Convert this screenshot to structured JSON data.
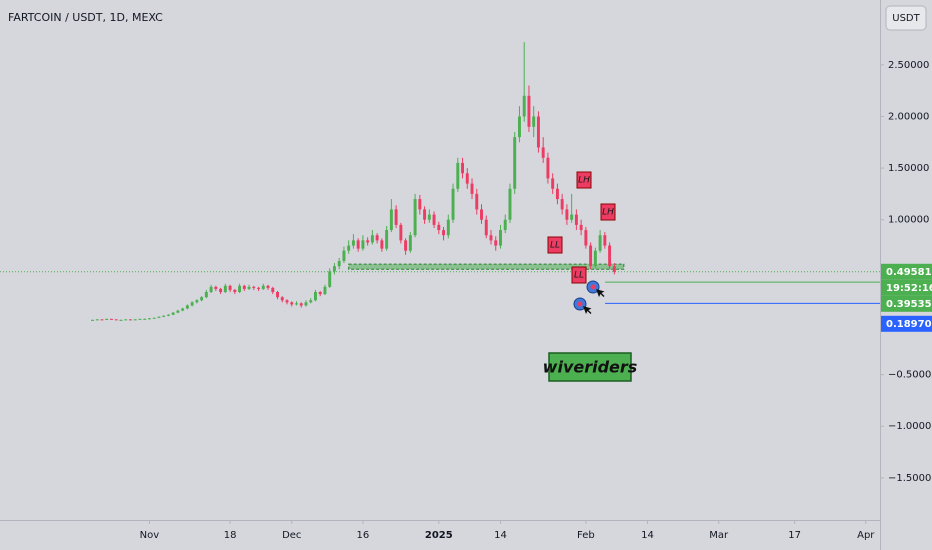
{
  "header": {
    "title": "FARTCOIN / USDT, 1D, MEXC",
    "currency_button": "USDT"
  },
  "chart_data": {
    "type": "candlestick",
    "up_color": "#4caf50",
    "down_color": "#ec3c64",
    "ylim": [
      -1.908,
      3.128
    ],
    "yticks": [
      {
        "value": 2.5,
        "label": "2.50000"
      },
      {
        "value": 2,
        "label": "2.00000"
      },
      {
        "value": 1.5,
        "label": "1.50000"
      },
      {
        "value": 1,
        "label": "1.00000"
      },
      {
        "value": -0.5,
        "label": "−0.50000"
      },
      {
        "value": -1,
        "label": "−1.00000"
      },
      {
        "value": -1.5,
        "label": "−1.50000"
      }
    ],
    "xlim": [
      -19.5,
      166
    ],
    "xticks": [
      {
        "value": 12,
        "label": "Nov"
      },
      {
        "value": 29,
        "label": "18"
      },
      {
        "value": 42,
        "label": "Dec"
      },
      {
        "value": 57,
        "label": "16"
      },
      {
        "value": 73,
        "label": "2025"
      },
      {
        "value": 86,
        "label": "14"
      },
      {
        "value": 104,
        "label": "Feb"
      },
      {
        "value": 117,
        "label": "14"
      },
      {
        "value": 132,
        "label": "Mar"
      },
      {
        "value": 148,
        "label": "17"
      },
      {
        "value": 163,
        "label": "Apr"
      }
    ],
    "candles": [
      [
        0.03,
        0.033,
        0.028,
        0.03
      ],
      [
        0.03,
        0.037,
        0.029,
        0.035
      ],
      [
        0.035,
        0.036,
        0.028,
        0.03
      ],
      [
        0.03,
        0.042,
        0.029,
        0.04
      ],
      [
        0.04,
        0.041,
        0.033,
        0.035
      ],
      [
        0.035,
        0.036,
        0.028,
        0.03
      ],
      [
        0.03,
        0.033,
        0.028,
        0.03
      ],
      [
        0.03,
        0.037,
        0.029,
        0.035
      ],
      [
        0.035,
        0.036,
        0.028,
        0.03
      ],
      [
        0.03,
        0.037,
        0.029,
        0.035
      ],
      [
        0.035,
        0.042,
        0.033,
        0.04
      ],
      [
        0.04,
        0.043,
        0.037,
        0.04
      ],
      [
        0.04,
        0.048,
        0.038,
        0.045
      ],
      [
        0.045,
        0.053,
        0.043,
        0.05
      ],
      [
        0.05,
        0.064,
        0.048,
        0.06
      ],
      [
        0.06,
        0.074,
        0.057,
        0.07
      ],
      [
        0.07,
        0.085,
        0.066,
        0.08
      ],
      [
        0.08,
        0.106,
        0.076,
        0.1
      ],
      [
        0.1,
        0.127,
        0.095,
        0.12
      ],
      [
        0.12,
        0.148,
        0.114,
        0.14
      ],
      [
        0.14,
        0.18,
        0.133,
        0.17
      ],
      [
        0.17,
        0.21,
        0.16,
        0.2
      ],
      [
        0.2,
        0.23,
        0.19,
        0.22
      ],
      [
        0.22,
        0.26,
        0.21,
        0.25
      ],
      [
        0.25,
        0.32,
        0.24,
        0.3
      ],
      [
        0.3,
        0.37,
        0.29,
        0.35
      ],
      [
        0.35,
        0.36,
        0.31,
        0.33
      ],
      [
        0.33,
        0.34,
        0.28,
        0.3
      ],
      [
        0.3,
        0.38,
        0.29,
        0.36
      ],
      [
        0.36,
        0.37,
        0.3,
        0.32
      ],
      [
        0.32,
        0.33,
        0.28,
        0.3
      ],
      [
        0.3,
        0.38,
        0.29,
        0.36
      ],
      [
        0.36,
        0.37,
        0.31,
        0.33
      ],
      [
        0.33,
        0.37,
        0.32,
        0.35
      ],
      [
        0.35,
        0.36,
        0.32,
        0.34
      ],
      [
        0.34,
        0.35,
        0.31,
        0.33
      ],
      [
        0.33,
        0.38,
        0.32,
        0.36
      ],
      [
        0.36,
        0.37,
        0.32,
        0.34
      ],
      [
        0.34,
        0.35,
        0.28,
        0.3
      ],
      [
        0.3,
        0.31,
        0.23,
        0.25
      ],
      [
        0.25,
        0.26,
        0.2,
        0.22
      ],
      [
        0.22,
        0.23,
        0.18,
        0.2
      ],
      [
        0.2,
        0.21,
        0.16,
        0.18
      ],
      [
        0.18,
        0.21,
        0.17,
        0.19
      ],
      [
        0.19,
        0.2,
        0.15,
        0.17
      ],
      [
        0.17,
        0.22,
        0.16,
        0.2
      ],
      [
        0.2,
        0.24,
        0.19,
        0.22
      ],
      [
        0.22,
        0.32,
        0.21,
        0.3
      ],
      [
        0.3,
        0.31,
        0.26,
        0.28
      ],
      [
        0.28,
        0.37,
        0.27,
        0.35
      ],
      [
        0.35,
        0.53,
        0.34,
        0.5
      ],
      [
        0.5,
        0.58,
        0.47,
        0.55
      ],
      [
        0.55,
        0.63,
        0.52,
        0.6
      ],
      [
        0.6,
        0.74,
        0.58,
        0.7
      ],
      [
        0.7,
        0.8,
        0.67,
        0.75
      ],
      [
        0.75,
        0.86,
        0.72,
        0.8
      ],
      [
        0.8,
        0.82,
        0.69,
        0.72
      ],
      [
        0.72,
        0.85,
        0.7,
        0.8
      ],
      [
        0.8,
        0.83,
        0.75,
        0.78
      ],
      [
        0.78,
        0.9,
        0.76,
        0.85
      ],
      [
        0.85,
        0.87,
        0.77,
        0.8
      ],
      [
        0.8,
        0.82,
        0.69,
        0.72
      ],
      [
        0.72,
        0.94,
        0.7,
        0.9
      ],
      [
        0.9,
        1.2,
        0.88,
        1.1
      ],
      [
        1.1,
        1.14,
        0.92,
        0.95
      ],
      [
        0.95,
        0.97,
        0.77,
        0.8
      ],
      [
        0.8,
        0.82,
        0.66,
        0.7
      ],
      [
        0.7,
        0.88,
        0.68,
        0.85
      ],
      [
        0.85,
        1.25,
        0.83,
        1.2
      ],
      [
        1.2,
        1.24,
        1.05,
        1.1
      ],
      [
        1.1,
        1.13,
        0.96,
        1.0
      ],
      [
        1.0,
        1.1,
        0.97,
        1.05
      ],
      [
        1.05,
        1.08,
        0.92,
        0.95
      ],
      [
        0.95,
        0.98,
        0.86,
        0.9
      ],
      [
        0.9,
        0.93,
        0.8,
        0.85
      ],
      [
        0.85,
        1.05,
        0.82,
        1.0
      ],
      [
        1.0,
        1.35,
        0.97,
        1.3
      ],
      [
        1.3,
        1.6,
        1.27,
        1.55
      ],
      [
        1.55,
        1.6,
        1.4,
        1.45
      ],
      [
        1.45,
        1.5,
        1.3,
        1.35
      ],
      [
        1.35,
        1.4,
        1.2,
        1.25
      ],
      [
        1.25,
        1.3,
        1.05,
        1.1
      ],
      [
        1.1,
        1.15,
        0.96,
        1.0
      ],
      [
        1.0,
        1.04,
        0.82,
        0.85
      ],
      [
        0.85,
        0.9,
        0.76,
        0.8
      ],
      [
        0.8,
        0.84,
        0.7,
        0.75
      ],
      [
        0.75,
        0.95,
        0.72,
        0.9
      ],
      [
        0.9,
        1.05,
        0.87,
        1.0
      ],
      [
        1.0,
        1.35,
        0.97,
        1.3
      ],
      [
        1.3,
        1.85,
        1.25,
        1.8
      ],
      [
        1.8,
        2.1,
        1.75,
        2.0
      ],
      [
        2.0,
        2.72,
        1.95,
        2.2
      ],
      [
        2.2,
        2.3,
        1.85,
        1.9
      ],
      [
        1.9,
        2.1,
        1.8,
        2.0
      ],
      [
        2.0,
        2.05,
        1.65,
        1.7
      ],
      [
        1.7,
        1.8,
        1.55,
        1.6
      ],
      [
        1.6,
        1.65,
        1.35,
        1.4
      ],
      [
        1.4,
        1.45,
        1.25,
        1.3
      ],
      [
        1.3,
        1.35,
        1.15,
        1.2
      ],
      [
        1.2,
        1.25,
        1.05,
        1.1
      ],
      [
        1.1,
        1.15,
        0.95,
        1.0
      ],
      [
        1.0,
        1.25,
        0.97,
        1.05
      ],
      [
        1.05,
        1.1,
        0.9,
        0.95
      ],
      [
        0.95,
        1.0,
        0.85,
        0.9
      ],
      [
        0.9,
        0.93,
        0.72,
        0.75
      ],
      [
        0.75,
        0.78,
        0.52,
        0.55
      ],
      [
        0.55,
        0.73,
        0.53,
        0.7
      ],
      [
        0.7,
        0.9,
        0.68,
        0.85
      ],
      [
        0.85,
        0.88,
        0.72,
        0.75
      ],
      [
        0.75,
        0.78,
        0.52,
        0.55
      ],
      [
        0.55,
        0.58,
        0.47,
        0.49581
      ]
    ],
    "support_zone": [
      0.52,
      0.57
    ],
    "current_price": {
      "value": 0.49581,
      "label": "0.49581",
      "countdown": "19:52:16",
      "color": "#4caf50"
    },
    "price_lines": [
      {
        "value": 0.39535,
        "label": "0.39535",
        "color": "#4caf50"
      },
      {
        "value": 0.1897,
        "label": "0.18970",
        "color": "#2962ff"
      }
    ],
    "annotations": [
      "LH",
      "LH",
      "LL",
      "LL"
    ],
    "watermark": "wiveriders"
  }
}
